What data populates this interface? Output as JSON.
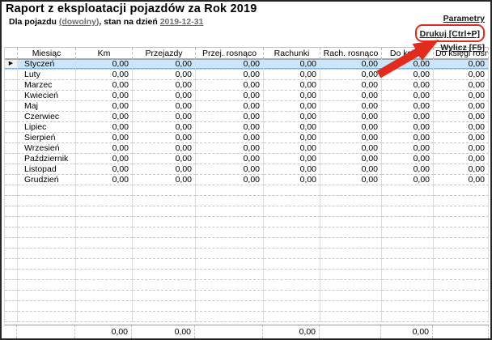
{
  "header": {
    "title": "Raport z eksploatacji pojazdów za Rok 2019",
    "subtitle_prefix": "Dla pojazdu ",
    "vehicle_link": "(dowolny)",
    "subtitle_middle": ", stan na dzień ",
    "date_link": "2019-12-31"
  },
  "actions": {
    "parametry_label": "Parametry",
    "drukuj_label": "Drukuj [Ctrl+P]",
    "wylicz_label": "Wylicz [F5]"
  },
  "annotation": {
    "color": "#e02b1d",
    "note": "red arrow pointing to Drukuj button, red rounded box around it"
  },
  "table": {
    "selection_bg": "#cde5f8",
    "selection_border": "#7fb2dd",
    "selected_marker": "▶",
    "selected_row_index": 0,
    "columns": [
      "Miesiąc",
      "Km",
      "Przejazdy",
      "Przej. rosnąco",
      "Rachunki",
      "Rach. rosnąco",
      "Do księgi",
      "Do księgi rosnąco"
    ],
    "rows": [
      {
        "month": "Styczeń",
        "values": [
          "0,00",
          "0,00",
          "0,00",
          "0,00",
          "0,00",
          "0,00",
          "0,00"
        ]
      },
      {
        "month": "Luty",
        "values": [
          "0,00",
          "0,00",
          "0,00",
          "0,00",
          "0,00",
          "0,00",
          "0,00"
        ]
      },
      {
        "month": "Marzec",
        "values": [
          "0,00",
          "0,00",
          "0,00",
          "0,00",
          "0,00",
          "0,00",
          "0,00"
        ]
      },
      {
        "month": "Kwiecień",
        "values": [
          "0,00",
          "0,00",
          "0,00",
          "0,00",
          "0,00",
          "0,00",
          "0,00"
        ]
      },
      {
        "month": "Maj",
        "values": [
          "0,00",
          "0,00",
          "0,00",
          "0,00",
          "0,00",
          "0,00",
          "0,00"
        ]
      },
      {
        "month": "Czerwiec",
        "values": [
          "0,00",
          "0,00",
          "0,00",
          "0,00",
          "0,00",
          "0,00",
          "0,00"
        ]
      },
      {
        "month": "Lipiec",
        "values": [
          "0,00",
          "0,00",
          "0,00",
          "0,00",
          "0,00",
          "0,00",
          "0,00"
        ]
      },
      {
        "month": "Sierpień",
        "values": [
          "0,00",
          "0,00",
          "0,00",
          "0,00",
          "0,00",
          "0,00",
          "0,00"
        ]
      },
      {
        "month": "Wrzesień",
        "values": [
          "0,00",
          "0,00",
          "0,00",
          "0,00",
          "0,00",
          "0,00",
          "0,00"
        ]
      },
      {
        "month": "Październik",
        "values": [
          "0,00",
          "0,00",
          "0,00",
          "0,00",
          "0,00",
          "0,00",
          "0,00"
        ]
      },
      {
        "month": "Listopad",
        "values": [
          "0,00",
          "0,00",
          "0,00",
          "0,00",
          "0,00",
          "0,00",
          "0,00"
        ]
      },
      {
        "month": "Grudzień",
        "values": [
          "0,00",
          "0,00",
          "0,00",
          "0,00",
          "0,00",
          "0,00",
          "0,00"
        ]
      }
    ],
    "empty_row_count": 13,
    "summary_values": [
      "",
      "0,00",
      "0,00",
      "",
      "0,00",
      "",
      "0,00",
      ""
    ]
  }
}
